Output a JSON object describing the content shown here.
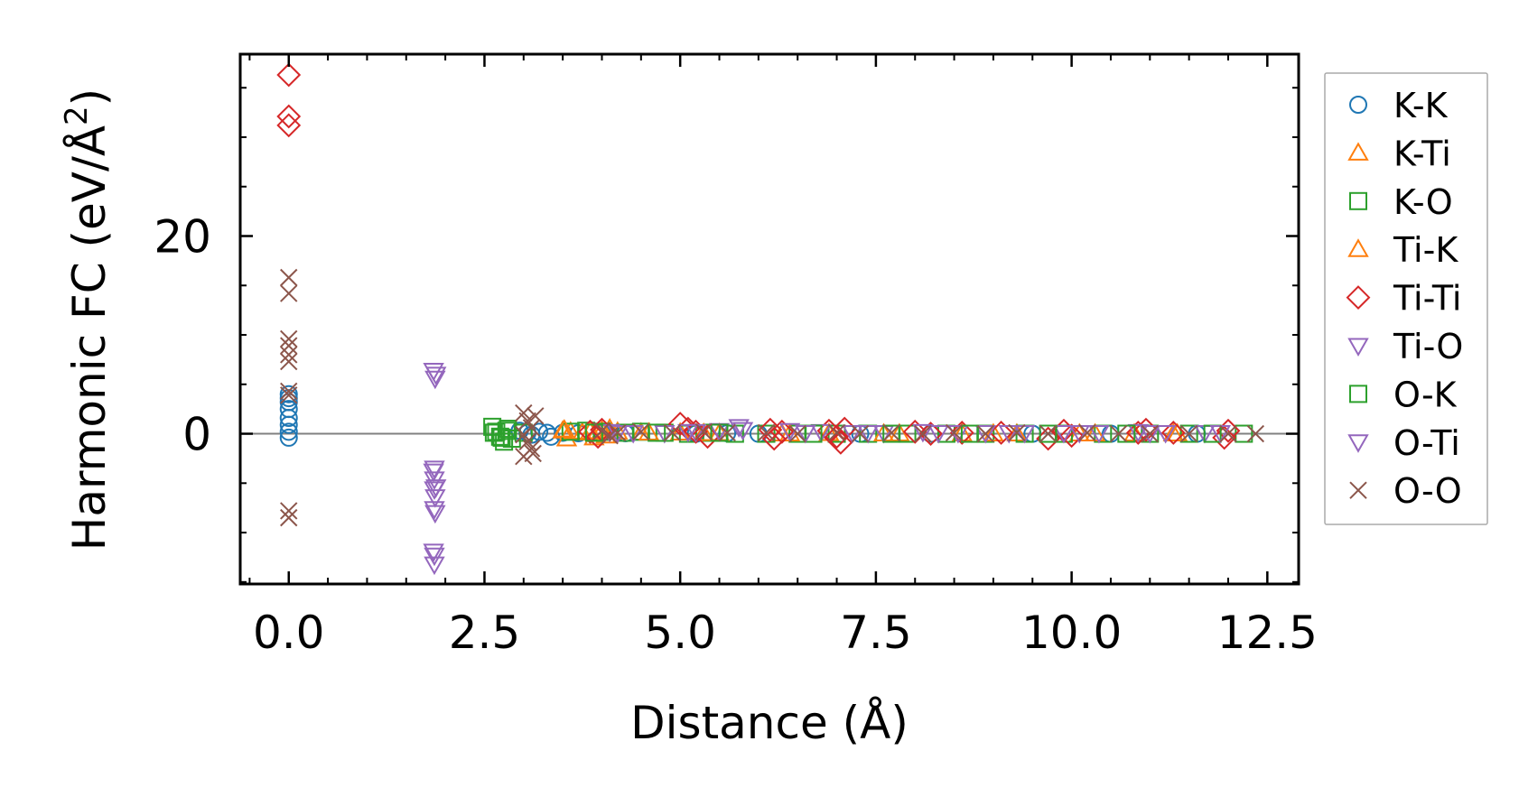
{
  "chart_data": {
    "type": "scatter",
    "title": "",
    "xlabel": "Distance (Å)",
    "ylabel_main": "Harmonic FC (eV/Å",
    "ylabel_sup": "2",
    "ylabel_close": ")",
    "xlim": [
      -0.62,
      12.9
    ],
    "ylim": [
      -15.2,
      38.4
    ],
    "xticks": [
      0.0,
      2.5,
      5.0,
      7.5,
      10.0,
      12.5
    ],
    "xtick_labels": [
      "0.0",
      "2.5",
      "5.0",
      "7.5",
      "10.0",
      "12.5"
    ],
    "yticks": [
      0,
      20
    ],
    "ytick_labels": [
      "0",
      "20"
    ],
    "x_minor_step": 0.5,
    "y_minor_step": 5,
    "zero_line": true,
    "grid": false,
    "legend_position": "outside-right",
    "series": [
      {
        "name": "K-K",
        "marker": "circle",
        "color": "#1f77b4",
        "points": [
          [
            0,
            4
          ],
          [
            0,
            3.6
          ],
          [
            0,
            3.2
          ],
          [
            0,
            2.5
          ],
          [
            0,
            1.6
          ],
          [
            0,
            0.9
          ],
          [
            0,
            0.2
          ],
          [
            0,
            -0.4
          ],
          [
            2.95,
            0.3
          ],
          [
            3.05,
            0.1
          ],
          [
            3.1,
            -0.1
          ],
          [
            3.2,
            0.2
          ],
          [
            3.3,
            0.1
          ],
          [
            3.35,
            -0.3
          ],
          [
            3.5,
            0.1
          ],
          [
            3.7,
            0.05
          ],
          [
            4.0,
            0.1
          ],
          [
            4.3,
            0.05
          ],
          [
            5.2,
            0
          ],
          [
            5.6,
            0.05
          ],
          [
            6.0,
            0
          ],
          [
            7.3,
            0
          ],
          [
            8.2,
            0
          ],
          [
            9.5,
            0
          ],
          [
            10.5,
            0
          ],
          [
            11.6,
            0
          ]
        ]
      },
      {
        "name": "K-Ti",
        "marker": "triangle-up",
        "color": "#ff7f0e",
        "points": [
          [
            3.5,
            0.3
          ],
          [
            3.55,
            -0.5
          ],
          [
            3.6,
            0.2
          ],
          [
            3.75,
            0.1
          ],
          [
            3.9,
            -0.4
          ],
          [
            4.0,
            0.3
          ],
          [
            4.1,
            0.5
          ],
          [
            4.2,
            0.2
          ],
          [
            4.5,
            0.1
          ],
          [
            5.0,
            0.1
          ],
          [
            5.5,
            0.05
          ],
          [
            6.3,
            0
          ],
          [
            6.9,
            0.05
          ],
          [
            7.8,
            0
          ],
          [
            8.6,
            0
          ],
          [
            9.3,
            0
          ],
          [
            10.1,
            0
          ],
          [
            10.8,
            0
          ],
          [
            11.35,
            0
          ]
        ]
      },
      {
        "name": "K-O",
        "marker": "square",
        "color": "#2ca02c",
        "points": [
          [
            2.6,
            0.7
          ],
          [
            2.65,
            0.2
          ],
          [
            2.7,
            -0.3
          ],
          [
            2.75,
            -0.8
          ],
          [
            2.8,
            0.5
          ],
          [
            2.85,
            -0.5
          ],
          [
            3.0,
            0.1
          ],
          [
            3.6,
            0.2
          ],
          [
            3.8,
            0.3
          ],
          [
            4.0,
            0.2
          ],
          [
            4.3,
            0.1
          ],
          [
            4.5,
            0.2
          ],
          [
            4.8,
            0.1
          ],
          [
            5.1,
            0
          ],
          [
            5.4,
            0.1
          ],
          [
            5.7,
            0
          ],
          [
            6.1,
            0
          ],
          [
            6.5,
            0
          ],
          [
            7.0,
            0
          ],
          [
            7.4,
            0
          ],
          [
            7.9,
            0
          ],
          [
            8.4,
            0
          ],
          [
            8.9,
            0
          ],
          [
            9.4,
            0
          ],
          [
            9.9,
            0
          ],
          [
            10.4,
            0
          ],
          [
            11.0,
            0
          ],
          [
            11.5,
            0
          ],
          [
            12.2,
            0
          ]
        ]
      },
      {
        "name": "Ti-K",
        "marker": "triangle-up",
        "color": "#ff7f0e",
        "points": [
          [
            3.52,
            0.4
          ],
          [
            3.85,
            0.2
          ],
          [
            4.05,
            -0.2
          ],
          [
            4.6,
            0.1
          ],
          [
            5.3,
            0.05
          ],
          [
            6.4,
            0
          ],
          [
            7.6,
            0
          ],
          [
            9.0,
            0
          ],
          [
            10.3,
            0
          ],
          [
            11.3,
            0
          ]
        ]
      },
      {
        "name": "Ti-Ti",
        "marker": "diamond",
        "color": "#d62728",
        "points": [
          [
            0,
            36.3
          ],
          [
            0,
            32.1
          ],
          [
            0,
            31.2
          ],
          [
            3.85,
            0.2
          ],
          [
            3.95,
            -0.3
          ],
          [
            4.0,
            0.4
          ],
          [
            5.0,
            1.0
          ],
          [
            5.1,
            0.5
          ],
          [
            5.2,
            0.2
          ],
          [
            5.35,
            -0.3
          ],
          [
            6.15,
            0.4
          ],
          [
            6.2,
            -0.5
          ],
          [
            6.3,
            0.2
          ],
          [
            6.9,
            0.3
          ],
          [
            7.0,
            -0.3
          ],
          [
            7.05,
            -0.9
          ],
          [
            7.1,
            0.5
          ],
          [
            8.0,
            0.2
          ],
          [
            8.2,
            0
          ],
          [
            8.6,
            0.1
          ],
          [
            9.1,
            0.1
          ],
          [
            9.7,
            -0.5
          ],
          [
            9.9,
            0.3
          ],
          [
            10.0,
            -0.2
          ],
          [
            10.85,
            0.1
          ],
          [
            10.95,
            0.4
          ],
          [
            11.3,
            0.1
          ],
          [
            11.95,
            -0.4
          ],
          [
            12.0,
            0.3
          ]
        ]
      },
      {
        "name": "Ti-O",
        "marker": "triangle-down",
        "color": "#9467bd",
        "points": [
          [
            1.85,
            6.4
          ],
          [
            1.87,
            5.6
          ],
          [
            1.86,
            -3.5
          ],
          [
            1.86,
            -4.6
          ],
          [
            1.86,
            -5.6
          ],
          [
            1.87,
            -6.4
          ],
          [
            1.86,
            -7.6
          ],
          [
            1.85,
            -11.9
          ],
          [
            1.86,
            -13.2
          ],
          [
            4.1,
            0.2
          ],
          [
            4.4,
            0.1
          ],
          [
            4.8,
            0.1
          ],
          [
            5.1,
            0.2
          ],
          [
            5.5,
            0.3
          ],
          [
            5.75,
            0.7
          ],
          [
            6.4,
            0.3
          ],
          [
            6.8,
            0.2
          ],
          [
            7.2,
            0.1
          ],
          [
            7.6,
            0.1
          ],
          [
            8.1,
            0.2
          ],
          [
            8.55,
            0.1
          ],
          [
            8.9,
            0.1
          ],
          [
            9.4,
            0.1
          ],
          [
            9.9,
            0.1
          ],
          [
            10.35,
            0.1
          ],
          [
            10.85,
            0.2
          ],
          [
            11.2,
            0.1
          ],
          [
            11.7,
            0.1
          ]
        ]
      },
      {
        "name": "O-K",
        "marker": "square",
        "color": "#2ca02c",
        "points": [
          [
            2.62,
            0.1
          ],
          [
            2.72,
            -0.4
          ],
          [
            2.78,
            0.3
          ],
          [
            3.9,
            0.1
          ],
          [
            4.7,
            0.1
          ],
          [
            5.5,
            0.1
          ],
          [
            6.7,
            0
          ],
          [
            7.7,
            0
          ],
          [
            8.7,
            0
          ],
          [
            9.7,
            0
          ],
          [
            10.7,
            0
          ],
          [
            11.8,
            0
          ]
        ]
      },
      {
        "name": "O-Ti",
        "marker": "triangle-down",
        "color": "#9467bd",
        "points": [
          [
            1.88,
            6.0
          ],
          [
            1.85,
            -3.8
          ],
          [
            1.88,
            -5.4
          ],
          [
            1.87,
            -8.0
          ],
          [
            1.86,
            -12.3
          ],
          [
            4.2,
            0.1
          ],
          [
            5.2,
            0.2
          ],
          [
            5.8,
            0.4
          ],
          [
            6.6,
            0.1
          ],
          [
            7.4,
            0.1
          ],
          [
            8.3,
            0.1
          ],
          [
            9.2,
            0.1
          ],
          [
            10.1,
            0.1
          ],
          [
            11.0,
            0.1
          ],
          [
            11.9,
            0.1
          ]
        ]
      },
      {
        "name": "O-O",
        "marker": "x",
        "color": "#8c564b",
        "points": [
          [
            0,
            15.8
          ],
          [
            0,
            14.2
          ],
          [
            0,
            9.6
          ],
          [
            0,
            8.9
          ],
          [
            0,
            8.0
          ],
          [
            0,
            7.3
          ],
          [
            0,
            4.3
          ],
          [
            0,
            3.9
          ],
          [
            0,
            -7.8
          ],
          [
            0,
            -8.5
          ],
          [
            3.0,
            2.1
          ],
          [
            3.05,
            1.3
          ],
          [
            3.1,
            0.6
          ],
          [
            3.0,
            -0.1
          ],
          [
            3.05,
            -0.8
          ],
          [
            3.1,
            -1.5
          ],
          [
            3.0,
            -2.3
          ],
          [
            3.15,
            1.8
          ],
          [
            3.12,
            -2.0
          ],
          [
            4.0,
            0.3
          ],
          [
            4.1,
            -0.2
          ],
          [
            4.2,
            0.1
          ],
          [
            4.5,
            0.2
          ],
          [
            4.9,
            0.1
          ],
          [
            5.3,
            0.2
          ],
          [
            5.6,
            0.1
          ],
          [
            6.1,
            0.1
          ],
          [
            6.5,
            0
          ],
          [
            7.0,
            0.1
          ],
          [
            7.3,
            0
          ],
          [
            7.7,
            0.1
          ],
          [
            8.1,
            0
          ],
          [
            8.5,
            0.1
          ],
          [
            8.9,
            0
          ],
          [
            9.3,
            0.1
          ],
          [
            9.7,
            0
          ],
          [
            10.2,
            0.1
          ],
          [
            10.6,
            0
          ],
          [
            11.0,
            0
          ],
          [
            11.5,
            0
          ],
          [
            12.0,
            0
          ],
          [
            12.35,
            0
          ]
        ]
      }
    ]
  }
}
